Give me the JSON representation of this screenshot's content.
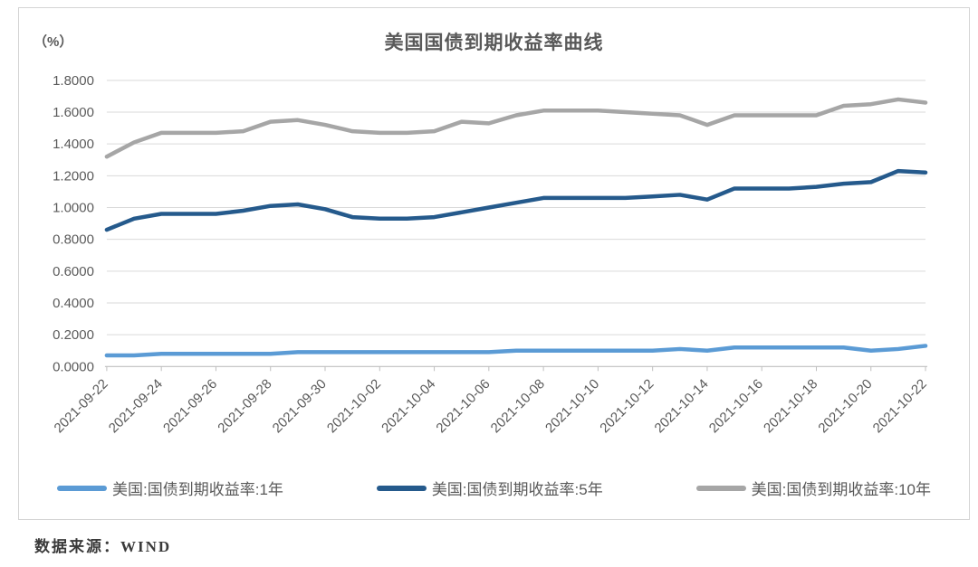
{
  "unit_label": "（%）",
  "title": "美国国债到期收益率曲线",
  "footer": "数据来源：WIND",
  "colors": {
    "series_1y": "#5B9BD5",
    "series_5y": "#255A8C",
    "series_10y": "#A6A6A6",
    "gridline": "#d9d9d9",
    "axis_line": "#bfbfbf",
    "axis_text": "#595959"
  },
  "chart_data": {
    "type": "line",
    "title": "美国国债到期收益率曲线",
    "ylabel": "（%）",
    "ylim": [
      0.0,
      1.8
    ],
    "ytick_step": 0.2,
    "yticks": [
      "0.0000",
      "0.2000",
      "0.4000",
      "0.6000",
      "0.8000",
      "1.0000",
      "1.2000",
      "1.4000",
      "1.6000",
      "1.8000"
    ],
    "grid": "horizontal",
    "legend_position": "bottom",
    "x_labels_shown_every": 2,
    "x": [
      "2021-09-22",
      "2021-09-23",
      "2021-09-24",
      "2021-09-25",
      "2021-09-26",
      "2021-09-27",
      "2021-09-28",
      "2021-09-29",
      "2021-09-30",
      "2021-10-01",
      "2021-10-02",
      "2021-10-03",
      "2021-10-04",
      "2021-10-05",
      "2021-10-06",
      "2021-10-07",
      "2021-10-08",
      "2021-10-09",
      "2021-10-10",
      "2021-10-11",
      "2021-10-12",
      "2021-10-13",
      "2021-10-14",
      "2021-10-15",
      "2021-10-16",
      "2021-10-17",
      "2021-10-18",
      "2021-10-19",
      "2021-10-20",
      "2021-10-21",
      "2021-10-22"
    ],
    "series": [
      {
        "name": "美国:国债到期收益率:1年",
        "color": "#5B9BD5",
        "values": [
          0.07,
          0.07,
          0.08,
          0.08,
          0.08,
          0.08,
          0.08,
          0.09,
          0.09,
          0.09,
          0.09,
          0.09,
          0.09,
          0.09,
          0.09,
          0.1,
          0.1,
          0.1,
          0.1,
          0.1,
          0.1,
          0.11,
          0.1,
          0.12,
          0.12,
          0.12,
          0.12,
          0.12,
          0.1,
          0.11,
          0.13
        ]
      },
      {
        "name": "美国:国债到期收益率:5年",
        "color": "#255A8C",
        "values": [
          0.86,
          0.93,
          0.96,
          0.96,
          0.96,
          0.98,
          1.01,
          1.02,
          0.99,
          0.94,
          0.93,
          0.93,
          0.94,
          0.97,
          1.0,
          1.03,
          1.06,
          1.06,
          1.06,
          1.06,
          1.07,
          1.08,
          1.05,
          1.12,
          1.12,
          1.12,
          1.13,
          1.15,
          1.16,
          1.23,
          1.22
        ]
      },
      {
        "name": "美国:国债到期收益率:10年",
        "color": "#A6A6A6",
        "values": [
          1.32,
          1.41,
          1.47,
          1.47,
          1.47,
          1.48,
          1.54,
          1.55,
          1.52,
          1.48,
          1.47,
          1.47,
          1.48,
          1.54,
          1.53,
          1.58,
          1.61,
          1.61,
          1.61,
          1.6,
          1.59,
          1.58,
          1.52,
          1.58,
          1.58,
          1.58,
          1.58,
          1.64,
          1.65,
          1.68,
          1.66
        ]
      }
    ]
  }
}
